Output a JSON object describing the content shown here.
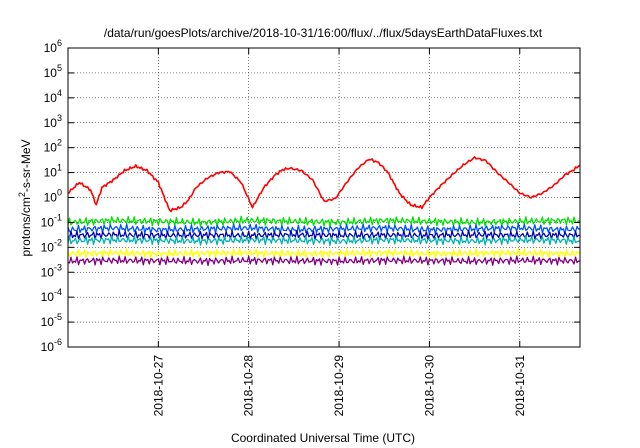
{
  "chart_data": {
    "type": "line",
    "title": "/data/run/goesPlots/archive/2018-10-31/16:00/flux/../flux/5daysEarthDataFluxes.txt",
    "xlabel": "Coordinated Universal Time (UTC)",
    "ylabel_main": "protons/cm",
    "ylabel_sup": "2",
    "ylabel_rest": "-s-sr-MeV",
    "yscale": "log",
    "ylim": [
      1e-06,
      1000000.0
    ],
    "ytick_exponents": [
      "-6",
      "-5",
      "-4",
      "-3",
      "-2",
      "-1",
      "0",
      "1",
      "2",
      "3",
      "4",
      "5",
      "6"
    ],
    "ytick_base": "10",
    "xlim": [
      "2018-10-26T00:00",
      "2018-10-31T16:00"
    ],
    "xticks": [
      "2018-10-27",
      "2018-10-28",
      "2018-10-29",
      "2018-10-30",
      "2018-10-31"
    ],
    "grid": true,
    "legend": "none",
    "series": [
      {
        "color": "#ff0000",
        "x": [
          "2018-10-26T00:00",
          "2018-10-26T03:00",
          "2018-10-26T06:00",
          "2018-10-26T07:30",
          "2018-10-26T09:00",
          "2018-10-26T12:00",
          "2018-10-26T15:00",
          "2018-10-26T18:00",
          "2018-10-26T21:00",
          "2018-10-27T00:00",
          "2018-10-27T03:00",
          "2018-10-27T06:00",
          "2018-10-27T08:00",
          "2018-10-27T10:00",
          "2018-10-27T13:00",
          "2018-10-27T16:00",
          "2018-10-27T19:00",
          "2018-10-27T22:00",
          "2018-10-28T01:00",
          "2018-10-28T04:00",
          "2018-10-28T07:00",
          "2018-10-28T09:00",
          "2018-10-28T11:00",
          "2018-10-28T14:00",
          "2018-10-28T17:00",
          "2018-10-28T20:00",
          "2018-10-28T23:00",
          "2018-10-29T02:00",
          "2018-10-29T05:00",
          "2018-10-29T08:00",
          "2018-10-29T10:30",
          "2018-10-29T13:00",
          "2018-10-29T16:00",
          "2018-10-29T19:00",
          "2018-10-29T22:00",
          "2018-10-30T00:00",
          "2018-10-30T03:00",
          "2018-10-30T06:00",
          "2018-10-30T09:00",
          "2018-10-30T12:00",
          "2018-10-30T15:00",
          "2018-10-30T18:00",
          "2018-10-30T21:00",
          "2018-10-31T00:00",
          "2018-10-31T03:00",
          "2018-10-31T06:00",
          "2018-10-31T09:00",
          "2018-10-31T12:00",
          "2018-10-31T14:00",
          "2018-10-31T16:00"
        ],
        "y": [
          1.5,
          4,
          2,
          0.5,
          2.5,
          5,
          12,
          18,
          12,
          4,
          0.3,
          0.4,
          0.8,
          2.5,
          6,
          10,
          11,
          4,
          0.4,
          2.5,
          8,
          13,
          15,
          12,
          5,
          0.7,
          0.9,
          4,
          15,
          35,
          25,
          10,
          1.5,
          0.5,
          0.4,
          1,
          3,
          8,
          20,
          40,
          30,
          10,
          4,
          1.5,
          1,
          1.5,
          3,
          8,
          12,
          20
        ]
      },
      {
        "color": "#00e000",
        "x": [
          "2018-10-26T00:00",
          "2018-10-26T12:00",
          "2018-10-27T00:00",
          "2018-10-27T12:00",
          "2018-10-28T00:00",
          "2018-10-28T12:00",
          "2018-10-29T00:00",
          "2018-10-29T12:00",
          "2018-10-30T00:00",
          "2018-10-30T12:00",
          "2018-10-31T00:00",
          "2018-10-31T12:00",
          "2018-10-31T16:00"
        ],
        "y": [
          0.1,
          0.12,
          0.11,
          0.1,
          0.12,
          0.11,
          0.1,
          0.12,
          0.11,
          0.1,
          0.11,
          0.12,
          0.11
        ]
      },
      {
        "color": "#0050ff",
        "x": [
          "2018-10-26T00:00",
          "2018-10-26T12:00",
          "2018-10-27T00:00",
          "2018-10-27T12:00",
          "2018-10-28T00:00",
          "2018-10-28T12:00",
          "2018-10-29T00:00",
          "2018-10-29T12:00",
          "2018-10-30T00:00",
          "2018-10-30T12:00",
          "2018-10-31T00:00",
          "2018-10-31T12:00",
          "2018-10-31T16:00"
        ],
        "y": [
          0.05,
          0.06,
          0.05,
          0.055,
          0.06,
          0.05,
          0.055,
          0.06,
          0.05,
          0.055,
          0.06,
          0.05,
          0.055
        ]
      },
      {
        "color": "#0000b0",
        "x": [
          "2018-10-26T00:00",
          "2018-10-26T12:00",
          "2018-10-27T00:00",
          "2018-10-27T12:00",
          "2018-10-28T00:00",
          "2018-10-28T12:00",
          "2018-10-29T00:00",
          "2018-10-29T12:00",
          "2018-10-30T00:00",
          "2018-10-30T12:00",
          "2018-10-31T00:00",
          "2018-10-31T12:00",
          "2018-10-31T16:00"
        ],
        "y": [
          0.03,
          0.032,
          0.03,
          0.031,
          0.03,
          0.032,
          0.03,
          0.031,
          0.03,
          0.032,
          0.03,
          0.031,
          0.03
        ]
      },
      {
        "color": "#00b0b0",
        "x": [
          "2018-10-26T00:00",
          "2018-10-26T12:00",
          "2018-10-27T00:00",
          "2018-10-27T12:00",
          "2018-10-28T00:00",
          "2018-10-28T12:00",
          "2018-10-29T00:00",
          "2018-10-29T12:00",
          "2018-10-30T00:00",
          "2018-10-30T12:00",
          "2018-10-31T00:00",
          "2018-10-31T12:00",
          "2018-10-31T16:00"
        ],
        "y": [
          0.018,
          0.02,
          0.019,
          0.018,
          0.02,
          0.019,
          0.018,
          0.02,
          0.019,
          0.018,
          0.02,
          0.019,
          0.018
        ]
      },
      {
        "color": "#ffff00",
        "x": [
          "2018-10-26T00:00",
          "2018-10-26T12:00",
          "2018-10-27T00:00",
          "2018-10-27T12:00",
          "2018-10-28T00:00",
          "2018-10-28T12:00",
          "2018-10-29T00:00",
          "2018-10-29T12:00",
          "2018-10-30T00:00",
          "2018-10-30T12:00",
          "2018-10-31T00:00",
          "2018-10-31T12:00",
          "2018-10-31T16:00"
        ],
        "y": [
          0.0055,
          0.006,
          0.0055,
          0.0058,
          0.006,
          0.0055,
          0.0058,
          0.006,
          0.0055,
          0.0058,
          0.006,
          0.0055,
          0.0058
        ]
      },
      {
        "color": "#800080",
        "x": [
          "2018-10-26T00:00",
          "2018-10-26T12:00",
          "2018-10-27T00:00",
          "2018-10-27T12:00",
          "2018-10-28T00:00",
          "2018-10-28T12:00",
          "2018-10-29T00:00",
          "2018-10-29T12:00",
          "2018-10-30T00:00",
          "2018-10-30T12:00",
          "2018-10-31T00:00",
          "2018-10-31T12:00",
          "2018-10-31T16:00"
        ],
        "y": [
          0.0028,
          0.003,
          0.0029,
          0.0028,
          0.003,
          0.0029,
          0.0028,
          0.003,
          0.0029,
          0.0028,
          0.003,
          0.0029,
          0.0028
        ]
      }
    ]
  }
}
